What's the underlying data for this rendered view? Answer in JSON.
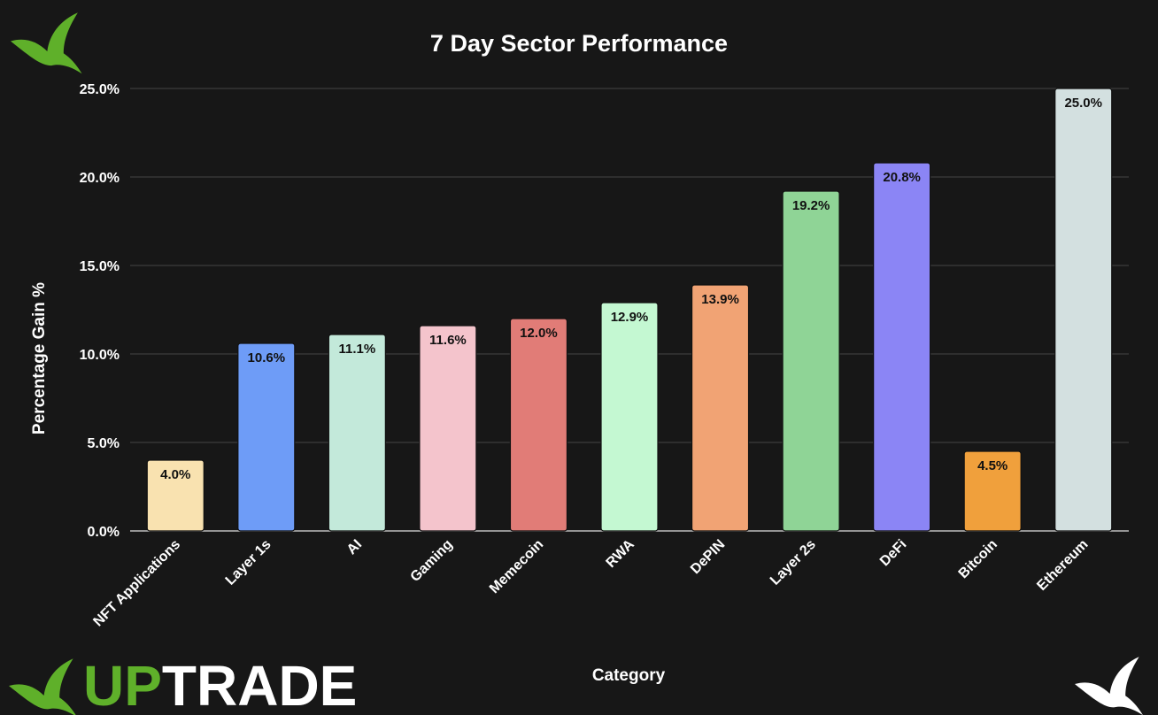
{
  "brand": {
    "name_part1": "UP",
    "name_part2": "TRADE",
    "color_green": "#5fb02a",
    "color_white": "#ffffff"
  },
  "chart_data": {
    "type": "bar",
    "title": "7 Day Sector Performance",
    "xlabel": "Category",
    "ylabel": "Percentage Gain %",
    "ylim": [
      0,
      25
    ],
    "yticks": [
      "0.0%",
      "5.0%",
      "10.0%",
      "15.0%",
      "20.0%",
      "25.0%"
    ],
    "grid": true,
    "categories": [
      "NFT Applications",
      "Layer 1s",
      "AI",
      "Gaming",
      "Memecoin",
      "RWA",
      "DePIN",
      "Layer 2s",
      "DeFi",
      "Bitcoin",
      "Ethereum"
    ],
    "values": [
      4.0,
      10.6,
      11.1,
      11.6,
      12.0,
      12.9,
      13.9,
      19.2,
      20.8,
      4.5,
      25.0
    ],
    "labels": [
      "4.0%",
      "10.6%",
      "11.1%",
      "11.6%",
      "12.0%",
      "12.9%",
      "13.9%",
      "19.2%",
      "20.8%",
      "4.5%",
      "25.0%"
    ],
    "colors": [
      "#f9e2b0",
      "#6e9cf7",
      "#c3e9da",
      "#f4c4cc",
      "#e17c77",
      "#c4f8d2",
      "#f1a374",
      "#8fd496",
      "#8b85f5",
      "#f0a03c",
      "#d3e0e0"
    ]
  }
}
